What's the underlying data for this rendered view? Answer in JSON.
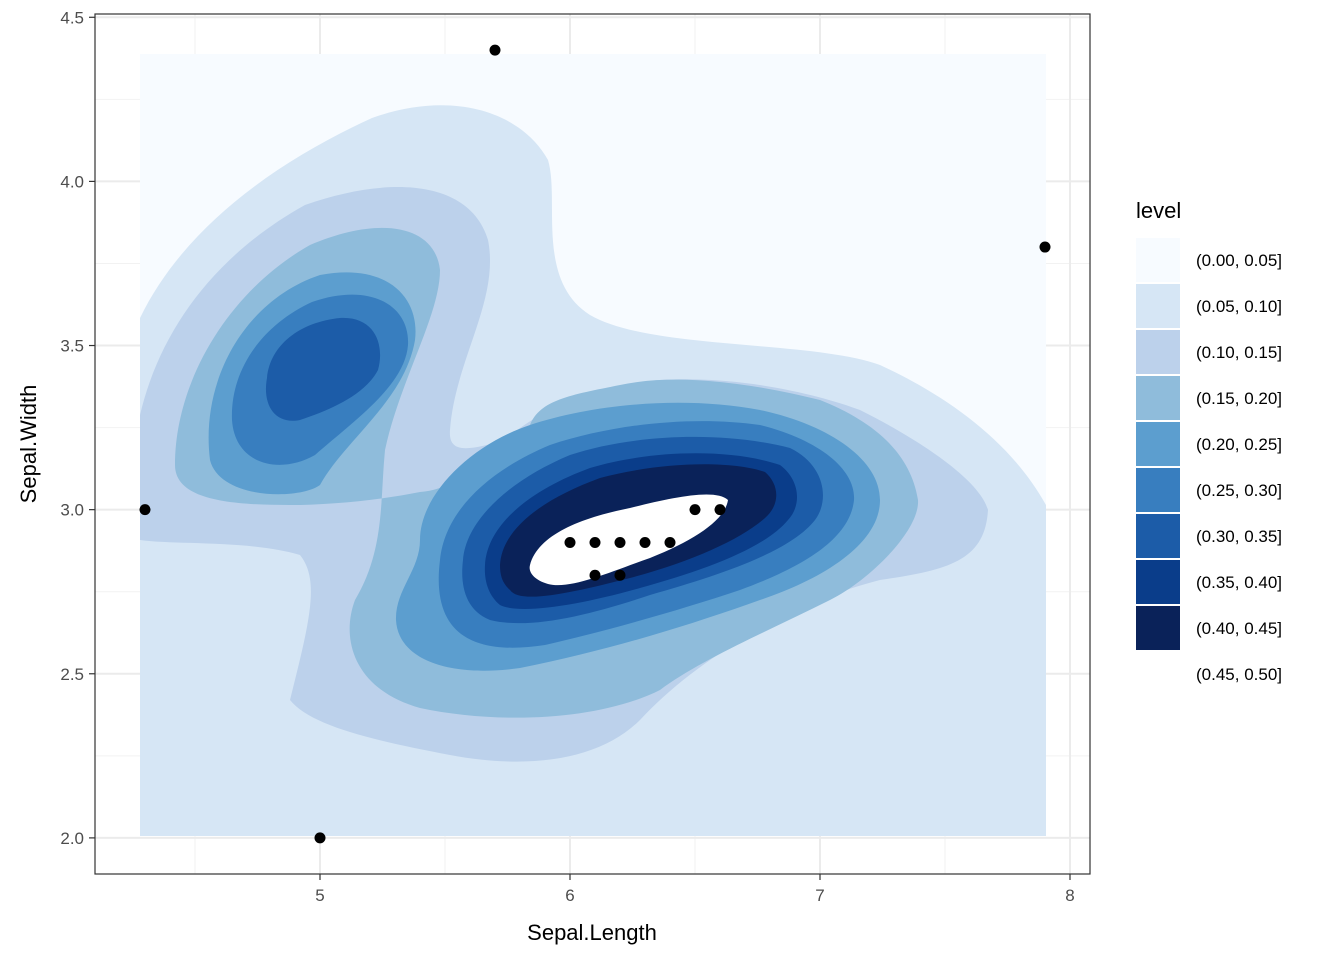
{
  "chart_data": {
    "type": "density-contour-filled",
    "title": "",
    "xlabel": "Sepal.Length",
    "ylabel": "Sepal.Width",
    "xlim": [
      4.1,
      8.08
    ],
    "ylim": [
      1.89,
      4.51
    ],
    "x_ticks": [
      5,
      6,
      7,
      8
    ],
    "y_ticks": [
      2.0,
      2.5,
      3.0,
      3.5,
      4.0,
      4.5
    ],
    "x_tick_labels": [
      "5",
      "6",
      "7",
      "8"
    ],
    "y_tick_labels": [
      "2.0",
      "2.5",
      "3.0",
      "3.5",
      "4.0",
      "4.5"
    ],
    "grid": true,
    "density_extent": {
      "x": [
        4.3,
        7.9
      ],
      "y": [
        2.0,
        4.4
      ]
    },
    "legend": {
      "title": "level",
      "placement": "right",
      "entries": [
        {
          "label": "(0.00, 0.05]",
          "color": "#f7fbff"
        },
        {
          "label": "(0.05, 0.10]",
          "color": "#d6e6f5"
        },
        {
          "label": "(0.10, 0.15]",
          "color": "#bcd1eb"
        },
        {
          "label": "(0.15, 0.20]",
          "color": "#8fbcdb"
        },
        {
          "label": "(0.20, 0.25]",
          "color": "#5c9ecf"
        },
        {
          "label": "(0.25, 0.30]",
          "color": "#387ebf"
        },
        {
          "label": "(0.30, 0.35]",
          "color": "#1c5ca8"
        },
        {
          "label": "(0.35, 0.40]",
          "color": "#0a3d8a"
        },
        {
          "label": "(0.40, 0.45]",
          "color": "#0a2259"
        },
        {
          "label": "(0.45, 0.50]",
          "color": "#ffffff"
        }
      ]
    },
    "points": [
      {
        "x": 4.3,
        "y": 3.0
      },
      {
        "x": 5.0,
        "y": 2.0
      },
      {
        "x": 5.7,
        "y": 4.4
      },
      {
        "x": 7.9,
        "y": 3.8
      },
      {
        "x": 6.0,
        "y": 2.9
      },
      {
        "x": 6.1,
        "y": 2.9
      },
      {
        "x": 6.2,
        "y": 2.9
      },
      {
        "x": 6.3,
        "y": 2.9
      },
      {
        "x": 6.4,
        "y": 2.9
      },
      {
        "x": 6.5,
        "y": 3.0
      },
      {
        "x": 6.6,
        "y": 3.0
      },
      {
        "x": 6.1,
        "y": 2.8
      },
      {
        "x": 6.2,
        "y": 2.8
      }
    ]
  }
}
